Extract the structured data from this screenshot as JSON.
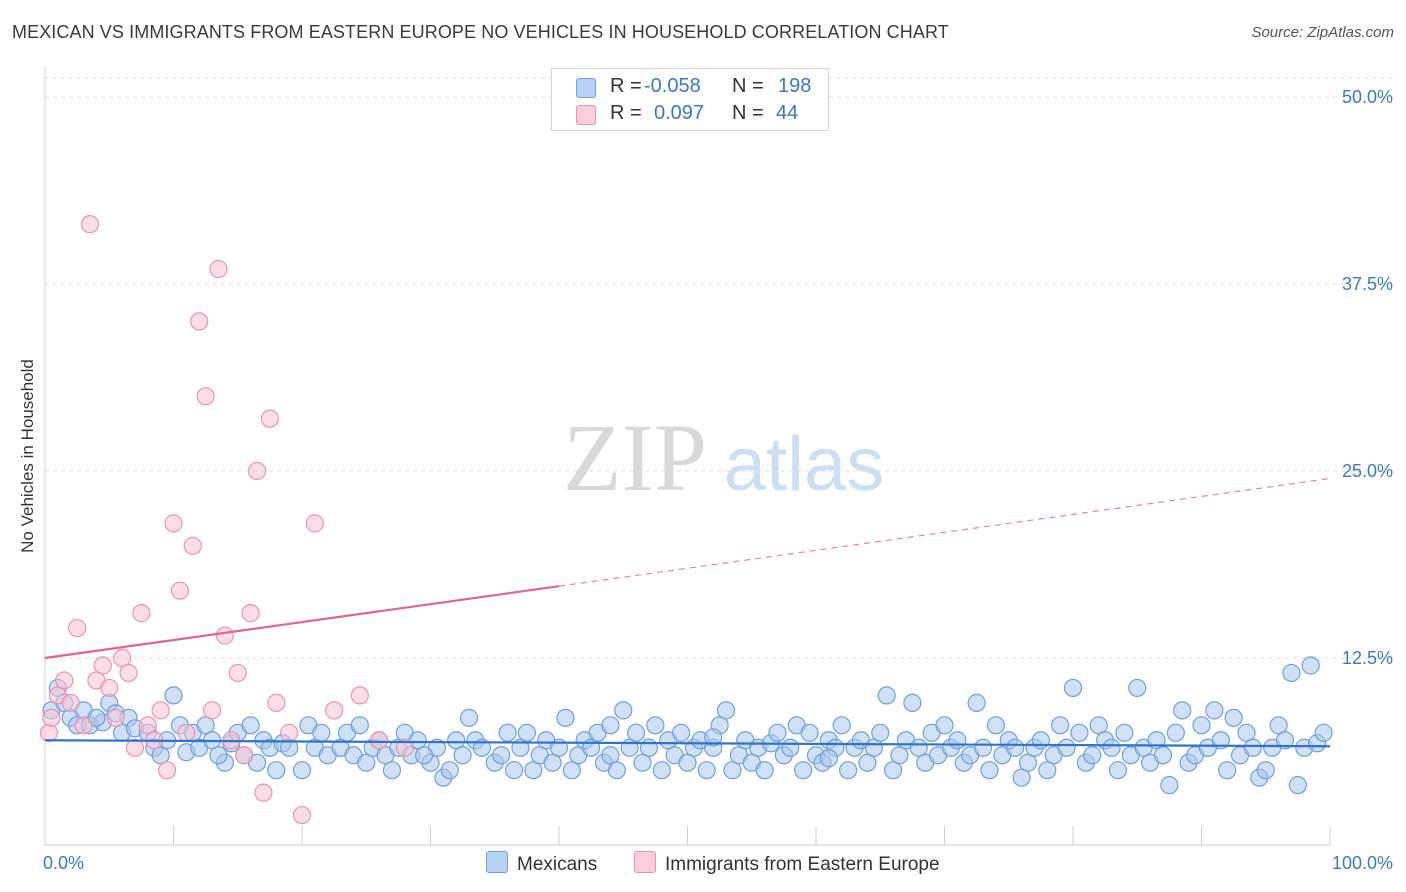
{
  "title": "MEXICAN VS IMMIGRANTS FROM EASTERN EUROPE NO VEHICLES IN HOUSEHOLD CORRELATION CHART",
  "source": "Source: ZipAtlas.com",
  "watermark": {
    "zip": "ZIP",
    "atlas": "atlas"
  },
  "legend": {
    "rows": [
      {
        "r_label": "R =",
        "r_value": "-0.058",
        "n_label": "N =",
        "n_value": "198"
      },
      {
        "r_label": "R =",
        "r_value": "0.097",
        "n_label": "N =",
        "n_value": "44"
      }
    ]
  },
  "bottom_legend": {
    "mexicans": "Mexicans",
    "eastern_europe": "Immigrants from Eastern Europe"
  },
  "colors": {
    "blue_fill": "#a9c8ef",
    "blue_stroke": "#6f9fdc",
    "blue_line": "#2e74c9",
    "pink_fill": "#f7c2d3",
    "pink_stroke": "#ec92b0",
    "pink_line": "#e0648e",
    "axis_text": "#3b78c6",
    "grid": "#dddddd"
  },
  "chart_data": {
    "type": "scatter",
    "title": "MEXICAN VS IMMIGRANTS FROM EASTERN EUROPE NO VEHICLES IN HOUSEHOLD CORRELATION CHART",
    "xlabel": "",
    "ylabel": "No Vehicles in Household",
    "xlim": [
      0,
      100
    ],
    "ylim": [
      0,
      50
    ],
    "x_tick_labels": [
      "0.0%",
      "100.0%"
    ],
    "y_ticks": [
      12.5,
      25.0,
      37.5,
      50.0
    ],
    "y_tick_labels": [
      "12.5%",
      "25.0%",
      "37.5%",
      "50.0%"
    ],
    "grid": true,
    "series": [
      {
        "name": "Mexicans",
        "r": -0.058,
        "n": 198,
        "trend": {
          "x0": 0,
          "y0": 7.0,
          "x1": 100,
          "y1": 6.6,
          "solid_until": 100
        },
        "points": [
          [
            0.5,
            9.0
          ],
          [
            1.0,
            10.5
          ],
          [
            1.5,
            9.5
          ],
          [
            2.0,
            8.5
          ],
          [
            2.5,
            8.0
          ],
          [
            3.0,
            9.0
          ],
          [
            3.5,
            8.0
          ],
          [
            4.5,
            8.2
          ],
          [
            5.0,
            9.5
          ],
          [
            5.5,
            8.8
          ],
          [
            6.0,
            7.5
          ],
          [
            6.5,
            8.5
          ],
          [
            7.0,
            7.8
          ],
          [
            8.0,
            7.5
          ],
          [
            8.5,
            6.5
          ],
          [
            9.0,
            6.0
          ],
          [
            9.5,
            7.0
          ],
          [
            10.0,
            10.0
          ],
          [
            10.5,
            8.0
          ],
          [
            11.0,
            6.2
          ],
          [
            11.5,
            7.5
          ],
          [
            12.0,
            6.5
          ],
          [
            12.5,
            8.0
          ],
          [
            13.0,
            7.0
          ],
          [
            14.0,
            5.5
          ],
          [
            14.5,
            6.8
          ],
          [
            15.0,
            7.5
          ],
          [
            15.5,
            6.0
          ],
          [
            16.0,
            8.0
          ],
          [
            16.5,
            5.5
          ],
          [
            17.0,
            7.0
          ],
          [
            17.5,
            6.5
          ],
          [
            18.0,
            5.0
          ],
          [
            18.5,
            6.8
          ],
          [
            19.0,
            6.5
          ],
          [
            20.0,
            5.0
          ],
          [
            20.5,
            8.0
          ],
          [
            21.0,
            6.5
          ],
          [
            21.5,
            7.5
          ],
          [
            22.0,
            6.0
          ],
          [
            23.0,
            6.5
          ],
          [
            23.5,
            7.5
          ],
          [
            24.0,
            6.0
          ],
          [
            24.5,
            8.0
          ],
          [
            25.0,
            5.5
          ],
          [
            25.5,
            6.5
          ],
          [
            26.0,
            7.0
          ],
          [
            26.5,
            6.0
          ],
          [
            27.0,
            5.0
          ],
          [
            27.5,
            6.5
          ],
          [
            28.0,
            7.5
          ],
          [
            28.5,
            6.0
          ],
          [
            29.0,
            7.0
          ],
          [
            30.0,
            5.5
          ],
          [
            30.5,
            6.5
          ],
          [
            31.0,
            4.5
          ],
          [
            31.5,
            5.0
          ],
          [
            32.0,
            7.0
          ],
          [
            32.5,
            6.0
          ],
          [
            33.0,
            8.5
          ],
          [
            33.5,
            7.0
          ],
          [
            34.0,
            6.5
          ],
          [
            35.0,
            5.5
          ],
          [
            35.5,
            6.0
          ],
          [
            36.0,
            7.5
          ],
          [
            36.5,
            5.0
          ],
          [
            37.0,
            6.5
          ],
          [
            37.5,
            7.5
          ],
          [
            38.0,
            5.0
          ],
          [
            38.5,
            6.0
          ],
          [
            39.0,
            7.0
          ],
          [
            39.5,
            5.5
          ],
          [
            40.0,
            6.5
          ],
          [
            40.5,
            8.5
          ],
          [
            41.0,
            5.0
          ],
          [
            41.5,
            6.0
          ],
          [
            42.0,
            7.0
          ],
          [
            42.5,
            6.5
          ],
          [
            43.0,
            7.5
          ],
          [
            43.5,
            5.5
          ],
          [
            44.0,
            6.0
          ],
          [
            44.5,
            5.0
          ],
          [
            45.0,
            9.0
          ],
          [
            45.5,
            6.5
          ],
          [
            46.0,
            7.5
          ],
          [
            46.5,
            5.5
          ],
          [
            47.0,
            6.5
          ],
          [
            47.5,
            8.0
          ],
          [
            48.0,
            5.0
          ],
          [
            48.5,
            7.0
          ],
          [
            49.0,
            6.0
          ],
          [
            49.5,
            7.5
          ],
          [
            50.0,
            5.5
          ],
          [
            50.5,
            6.5
          ],
          [
            51.0,
            7.0
          ],
          [
            51.5,
            5.0
          ],
          [
            52.0,
            6.5
          ],
          [
            52.5,
            8.0
          ],
          [
            53.0,
            9.0
          ],
          [
            53.5,
            5.0
          ],
          [
            54.0,
            6.0
          ],
          [
            54.5,
            7.0
          ],
          [
            55.0,
            5.5
          ],
          [
            55.5,
            6.5
          ],
          [
            56.0,
            5.0
          ],
          [
            56.5,
            6.8
          ],
          [
            57.0,
            7.5
          ],
          [
            57.5,
            6.0
          ],
          [
            58.0,
            6.5
          ],
          [
            58.5,
            8.0
          ],
          [
            59.0,
            5.0
          ],
          [
            59.5,
            7.5
          ],
          [
            60.0,
            6.0
          ],
          [
            60.5,
            5.5
          ],
          [
            61.0,
            7.0
          ],
          [
            61.5,
            6.5
          ],
          [
            62.0,
            8.0
          ],
          [
            62.5,
            5.0
          ],
          [
            63.0,
            6.5
          ],
          [
            63.5,
            7.0
          ],
          [
            64.0,
            5.5
          ],
          [
            64.5,
            6.5
          ],
          [
            65.0,
            7.5
          ],
          [
            65.5,
            10.0
          ],
          [
            66.0,
            5.0
          ],
          [
            66.5,
            6.0
          ],
          [
            67.0,
            7.0
          ],
          [
            67.5,
            9.5
          ],
          [
            68.0,
            6.5
          ],
          [
            68.5,
            5.5
          ],
          [
            69.0,
            7.5
          ],
          [
            69.5,
            6.0
          ],
          [
            70.0,
            8.0
          ],
          [
            70.5,
            6.5
          ],
          [
            71.0,
            7.0
          ],
          [
            71.5,
            5.5
          ],
          [
            72.0,
            6.0
          ],
          [
            72.5,
            9.5
          ],
          [
            73.0,
            6.5
          ],
          [
            73.5,
            5.0
          ],
          [
            74.0,
            8.0
          ],
          [
            74.5,
            6.0
          ],
          [
            75.0,
            7.0
          ],
          [
            75.5,
            6.5
          ],
          [
            76.0,
            4.5
          ],
          [
            76.5,
            5.5
          ],
          [
            77.0,
            6.5
          ],
          [
            77.5,
            7.0
          ],
          [
            78.0,
            5.0
          ],
          [
            78.5,
            6.0
          ],
          [
            79.0,
            8.0
          ],
          [
            79.5,
            6.5
          ],
          [
            80.0,
            10.5
          ],
          [
            80.5,
            7.5
          ],
          [
            81.0,
            5.5
          ],
          [
            81.5,
            6.0
          ],
          [
            82.0,
            8.0
          ],
          [
            82.5,
            7.0
          ],
          [
            83.0,
            6.5
          ],
          [
            83.5,
            5.0
          ],
          [
            84.0,
            7.5
          ],
          [
            84.5,
            6.0
          ],
          [
            85.0,
            10.5
          ],
          [
            85.5,
            6.5
          ],
          [
            86.0,
            5.5
          ],
          [
            86.5,
            7.0
          ],
          [
            87.0,
            6.0
          ],
          [
            87.5,
            4.0
          ],
          [
            88.0,
            7.5
          ],
          [
            88.5,
            9.0
          ],
          [
            89.0,
            5.5
          ],
          [
            89.5,
            6.0
          ],
          [
            90.0,
            8.0
          ],
          [
            90.5,
            6.5
          ],
          [
            91.0,
            9.0
          ],
          [
            91.5,
            7.0
          ],
          [
            92.0,
            5.0
          ],
          [
            92.5,
            8.5
          ],
          [
            93.0,
            6.0
          ],
          [
            93.5,
            7.5
          ],
          [
            94.0,
            6.5
          ],
          [
            94.5,
            4.5
          ],
          [
            95.0,
            5.0
          ],
          [
            95.5,
            6.5
          ],
          [
            96.0,
            8.0
          ],
          [
            96.5,
            7.0
          ],
          [
            97.0,
            11.5
          ],
          [
            97.5,
            4.0
          ],
          [
            98.0,
            6.5
          ],
          [
            98.5,
            12.0
          ],
          [
            99.0,
            6.8
          ],
          [
            99.5,
            7.5
          ],
          [
            4.0,
            8.5
          ],
          [
            13.5,
            6.0
          ],
          [
            29.5,
            6.0
          ],
          [
            44.0,
            8.0
          ],
          [
            52.0,
            7.2
          ],
          [
            61.0,
            5.8
          ]
        ]
      },
      {
        "name": "Immigrants from Eastern Europe",
        "r": 0.097,
        "n": 44,
        "trend": {
          "x0": 0,
          "y0": 12.5,
          "x1": 100,
          "y1": 24.5,
          "solid_until": 40
        },
        "points": [
          [
            0.3,
            7.5
          ],
          [
            0.5,
            8.5
          ],
          [
            1.0,
            10.0
          ],
          [
            1.5,
            11.0
          ],
          [
            2.0,
            9.5
          ],
          [
            2.5,
            14.5
          ],
          [
            3.0,
            8.0
          ],
          [
            3.5,
            41.5
          ],
          [
            4.0,
            11.0
          ],
          [
            4.5,
            12.0
          ],
          [
            5.0,
            10.5
          ],
          [
            5.5,
            8.5
          ],
          [
            6.0,
            12.5
          ],
          [
            6.5,
            11.5
          ],
          [
            7.0,
            6.5
          ],
          [
            7.5,
            15.5
          ],
          [
            8.0,
            8.0
          ],
          [
            8.5,
            7.0
          ],
          [
            9.0,
            9.0
          ],
          [
            9.5,
            5.0
          ],
          [
            10.0,
            21.5
          ],
          [
            10.5,
            17.0
          ],
          [
            11.0,
            7.5
          ],
          [
            11.5,
            20.0
          ],
          [
            12.0,
            35.0
          ],
          [
            12.5,
            30.0
          ],
          [
            13.0,
            9.0
          ],
          [
            13.5,
            38.5
          ],
          [
            14.0,
            14.0
          ],
          [
            14.5,
            7.0
          ],
          [
            15.0,
            11.5
          ],
          [
            15.5,
            6.0
          ],
          [
            16.0,
            15.5
          ],
          [
            16.5,
            25.0
          ],
          [
            17.0,
            3.5
          ],
          [
            17.5,
            28.5
          ],
          [
            18.0,
            9.5
          ],
          [
            19.0,
            7.5
          ],
          [
            20.0,
            2.0
          ],
          [
            21.0,
            21.5
          ],
          [
            22.5,
            9.0
          ],
          [
            24.5,
            10.0
          ],
          [
            26.0,
            7.0
          ],
          [
            28.0,
            6.5
          ]
        ]
      }
    ]
  }
}
